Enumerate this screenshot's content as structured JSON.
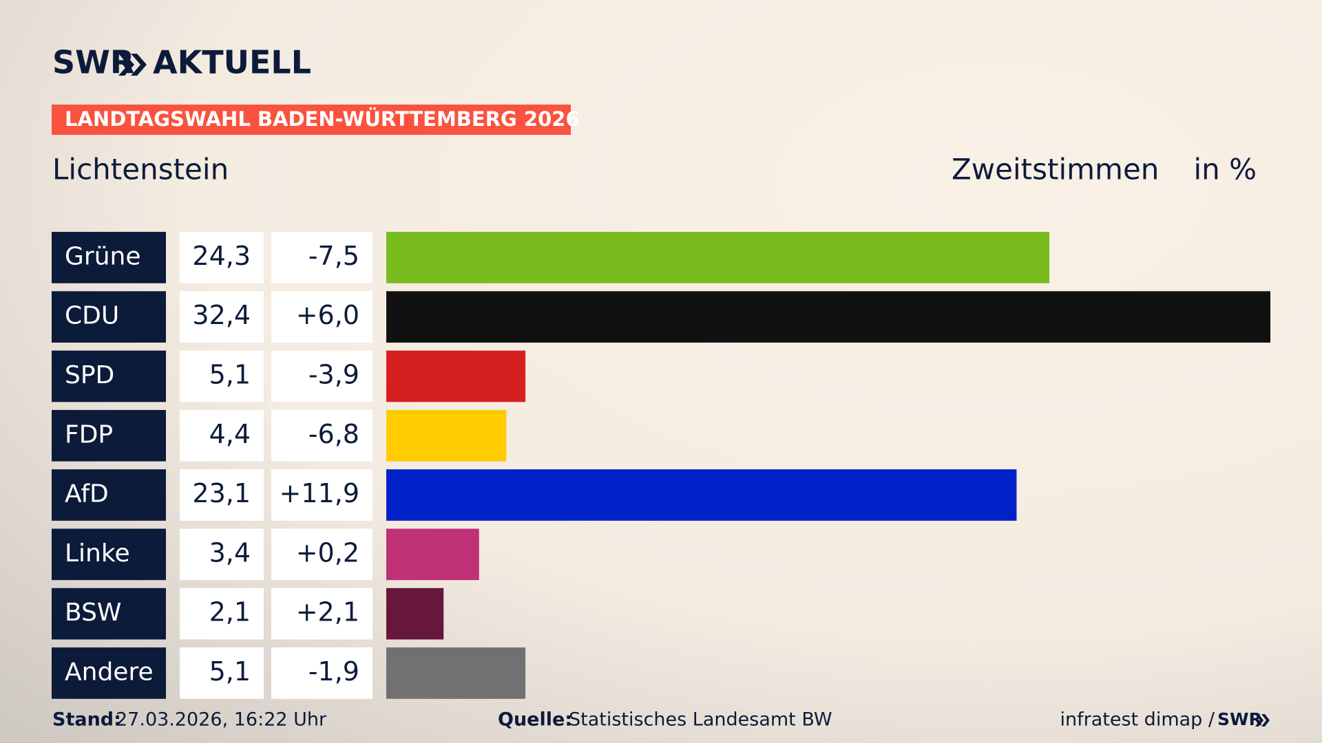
{
  "chart_data": {
    "type": "bar",
    "brand": "SWR",
    "brand_product": "AKTUELL",
    "title": "LANDTAGSWAHL BADEN-WÜRTTEMBERG 2026",
    "subtitle": "Lichtenstein",
    "measure": "Zweitstimmen",
    "unit": "in %",
    "categories": [
      "Grüne",
      "CDU",
      "SPD",
      "FDP",
      "AfD",
      "Linke",
      "BSW",
      "Andere"
    ],
    "values": [
      24.3,
      32.4,
      5.1,
      4.4,
      23.1,
      3.4,
      2.1,
      5.1
    ],
    "value_labels": [
      "24,3",
      "32,4",
      "5,1",
      "4,4",
      "23,1",
      "3,4",
      "2,1",
      "5,1"
    ],
    "changes": [
      {
        "value": -7.5,
        "label": "-7,5"
      },
      {
        "value": 6.0,
        "label": "+6,0"
      },
      {
        "value": -3.9,
        "label": "-3,9"
      },
      {
        "value": -6.8,
        "label": "-6,8"
      },
      {
        "value": 11.9,
        "label": "+11,9"
      },
      {
        "value": 0.2,
        "label": "+0,2"
      },
      {
        "value": 2.1,
        "label": "+2,1"
      },
      {
        "value": -1.9,
        "label": "-1,9"
      }
    ],
    "colors": [
      "#78bc1e",
      "#111111",
      "#d6201f",
      "#ffcc00",
      "#0021c8",
      "#bf3076",
      "#67163c",
      "#717171"
    ],
    "xlim": [
      0,
      32.4
    ],
    "footer": {
      "stand_label": "Stand:",
      "stand": "27.03.2026, 16:22 Uhr",
      "source_label": "Quelle:",
      "source": "Statistisches Landesamt BW",
      "credit": "infratest dimap /",
      "credit_brand": "SWR"
    }
  }
}
